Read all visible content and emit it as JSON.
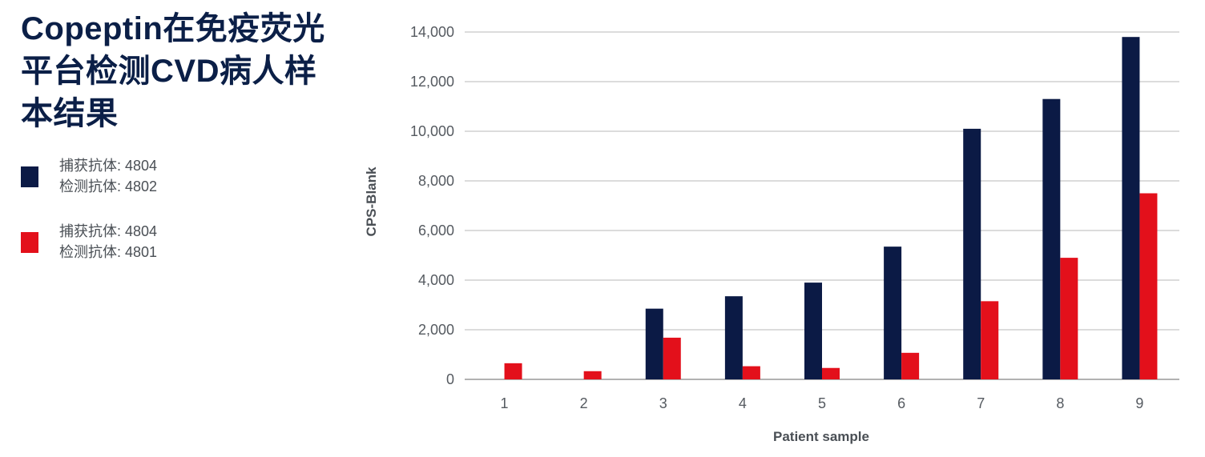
{
  "title": "Copeptin在免疫荧光平台检测CVD病人样本结果",
  "legend": [
    {
      "line1": "捕获抗体: 4804",
      "line2": "检测抗体: 4802",
      "color": "#0b1a45"
    },
    {
      "line1": "捕获抗体: 4804",
      "line2": "检测抗体: 4801",
      "color": "#e3101b"
    }
  ],
  "chart_data": {
    "type": "bar",
    "title": "Copeptin在免疫荧光平台检测CVD病人样本结果",
    "xlabel": "Patient sample",
    "ylabel": "CPS-Blank",
    "categories": [
      "1",
      "2",
      "3",
      "4",
      "5",
      "6",
      "7",
      "8",
      "9"
    ],
    "ylim": [
      0,
      14000
    ],
    "yticks": [
      0,
      2000,
      4000,
      6000,
      8000,
      10000,
      12000,
      14000
    ],
    "ytick_labels": [
      "0",
      "2,000",
      "4,000",
      "6,000",
      "8,000",
      "10,000",
      "12,000",
      "14,000"
    ],
    "grid": true,
    "series": [
      {
        "name": "捕获抗体: 4804 / 检测抗体: 4802",
        "color": "#0b1a45",
        "values": [
          0,
          0,
          2850,
          3350,
          3900,
          5350,
          10100,
          11300,
          13800
        ]
      },
      {
        "name": "捕获抗体: 4804 / 检测抗体: 4801",
        "color": "#e3101b",
        "values": [
          650,
          330,
          1680,
          530,
          460,
          1070,
          3150,
          4900,
          7500
        ]
      }
    ],
    "colors": {
      "grid": "#c8c8c8",
      "axis": "#999999",
      "tick_text": "#555a60",
      "label_text": "#4a4f55"
    }
  }
}
